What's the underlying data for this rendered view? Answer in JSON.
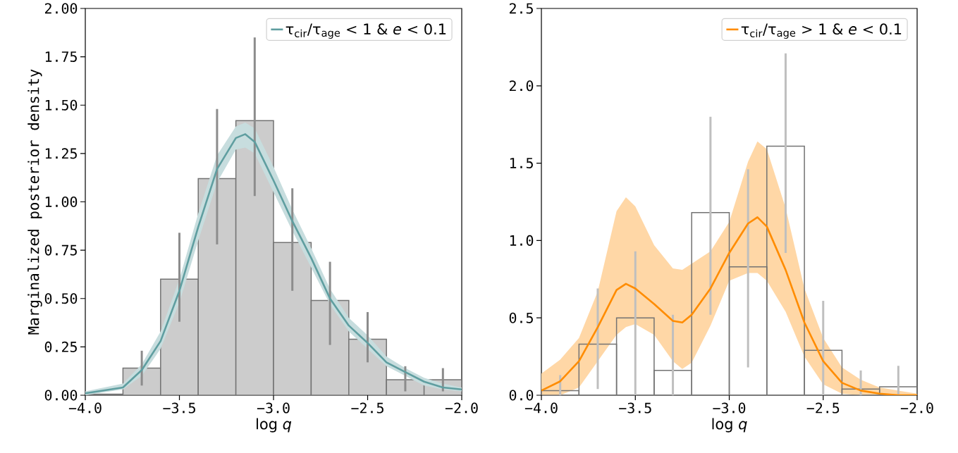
{
  "chart_data": [
    {
      "type": "histogram",
      "ylabel": "Marginalized posterior density",
      "xlabel": "log *q*",
      "bins": [
        -4.0,
        -3.8,
        -3.6,
        -3.4,
        -3.2,
        -3.0,
        -2.8,
        -2.6,
        -2.4,
        -2.2,
        -2.0
      ],
      "values": [
        0.005,
        0.14,
        0.6,
        1.12,
        1.42,
        0.79,
        0.49,
        0.29,
        0.08,
        0.08
      ],
      "errors": [
        null,
        [
          0.05,
          0.23
        ],
        [
          0.38,
          0.84
        ],
        [
          0.78,
          1.48
        ],
        [
          1.03,
          1.85
        ],
        [
          0.54,
          1.07
        ],
        [
          0.26,
          0.69
        ],
        [
          0.17,
          0.43
        ],
        [
          0.02,
          0.15
        ],
        [
          0.02,
          0.14
        ]
      ],
      "color": "#cccccc",
      "legend": "top right",
      "xlim": [
        -4.0,
        -2.0
      ],
      "ylim": [
        0,
        2.0
      ],
      "xticks": [
        {
          "value": -4.0,
          "label": "−4.0"
        },
        {
          "value": -3.5,
          "label": "−3.5"
        },
        {
          "value": -3.0,
          "label": "−3.0"
        },
        {
          "value": -2.5,
          "label": "−2.5"
        },
        {
          "value": -2.0,
          "label": "−2.0"
        }
      ],
      "yticks": [
        {
          "value": 0,
          "label": "0.00"
        },
        {
          "value": 0.25,
          "label": "0.25"
        },
        {
          "value": 0.5,
          "label": "0.50"
        },
        {
          "value": 0.75,
          "label": "0.75"
        },
        {
          "value": 1.0,
          "label": "1.00"
        },
        {
          "value": 1.25,
          "label": "1.25"
        },
        {
          "value": 1.5,
          "label": "1.50"
        },
        {
          "value": 1.75,
          "label": "1.75"
        },
        {
          "value": 2.0,
          "label": "2.00"
        }
      ],
      "series": [
        {
          "type": "line",
          "name": "τ$_{cir}$/τ$_{age}$ < 1 & *e* < 0.1",
          "color": "#5f9ea0",
          "x": [
            -4.0,
            -3.8,
            -3.7,
            -3.6,
            -3.5,
            -3.4,
            -3.3,
            -3.2,
            -3.15,
            -3.1,
            -3.0,
            -2.9,
            -2.8,
            -2.7,
            -2.6,
            -2.5,
            -2.4,
            -2.3,
            -2.2,
            -2.1,
            -2.0
          ],
          "values": [
            0.01,
            0.04,
            0.13,
            0.28,
            0.54,
            0.87,
            1.17,
            1.33,
            1.35,
            1.31,
            1.11,
            0.9,
            0.71,
            0.5,
            0.36,
            0.27,
            0.17,
            0.12,
            0.07,
            0.04,
            0.03
          ],
          "lower": [
            0.0,
            0.03,
            0.1,
            0.24,
            0.48,
            0.8,
            1.1,
            1.27,
            1.28,
            1.25,
            1.05,
            0.85,
            0.66,
            0.47,
            0.33,
            0.24,
            0.15,
            0.1,
            0.05,
            0.03,
            0.02
          ],
          "upper": [
            0.02,
            0.06,
            0.16,
            0.33,
            0.6,
            0.94,
            1.24,
            1.39,
            1.41,
            1.38,
            1.18,
            0.96,
            0.76,
            0.55,
            0.4,
            0.31,
            0.2,
            0.14,
            0.09,
            0.06,
            0.04
          ]
        }
      ]
    },
    {
      "type": "histogram",
      "xlabel": "log *q*",
      "bins": [
        -4.0,
        -3.8,
        -3.6,
        -3.4,
        -3.2,
        -3.0,
        -2.8,
        -2.6,
        -2.4,
        -2.2,
        -2.0
      ],
      "values": [
        0.03,
        0.33,
        0.5,
        0.16,
        1.18,
        0.83,
        1.61,
        0.29,
        0.04,
        0.055
      ],
      "errors": [
        [
          0.0,
          0.13
        ],
        [
          0.04,
          0.69
        ],
        [
          0.0,
          0.93
        ],
        [
          0.0,
          0.52
        ],
        [
          0.52,
          1.8
        ],
        [
          0.18,
          1.46
        ],
        [
          0.92,
          2.21
        ],
        [
          0.0,
          0.61
        ],
        [
          0.0,
          0.16
        ],
        [
          0.0,
          0.19
        ]
      ],
      "color": "#737373",
      "legend": "top right",
      "xlim": [
        -4.0,
        -2.0
      ],
      "ylim": [
        0,
        2.5
      ],
      "xticks": [
        {
          "value": -4.0,
          "label": "−4.0"
        },
        {
          "value": -3.5,
          "label": "−3.5"
        },
        {
          "value": -3.0,
          "label": "−3.0"
        },
        {
          "value": -2.5,
          "label": "−2.5"
        },
        {
          "value": -2.0,
          "label": "−2.0"
        }
      ],
      "yticks": [
        {
          "value": 0.0,
          "label": "0.0"
        },
        {
          "value": 0.5,
          "label": "0.5"
        },
        {
          "value": 1.0,
          "label": "1.0"
        },
        {
          "value": 1.5,
          "label": "1.5"
        },
        {
          "value": 2.0,
          "label": "2.0"
        },
        {
          "value": 2.5,
          "label": "2.5"
        }
      ],
      "series": [
        {
          "type": "line",
          "name": "τ$_{cir}$/τ$_{age}$ > 1 & *e* < 0.1",
          "color": "#ff8c00",
          "x": [
            -4.0,
            -3.9,
            -3.8,
            -3.7,
            -3.6,
            -3.55,
            -3.5,
            -3.4,
            -3.3,
            -3.25,
            -3.2,
            -3.1,
            -3.0,
            -2.9,
            -2.85,
            -2.8,
            -2.7,
            -2.6,
            -2.5,
            -2.4,
            -2.3,
            -2.2,
            -2.1,
            -2.0
          ],
          "values": [
            0.03,
            0.09,
            0.22,
            0.44,
            0.68,
            0.72,
            0.69,
            0.59,
            0.48,
            0.47,
            0.52,
            0.69,
            0.92,
            1.11,
            1.15,
            1.09,
            0.81,
            0.47,
            0.22,
            0.08,
            0.03,
            0.01,
            0.0,
            0.0
          ],
          "lower": [
            0.0,
            0.0,
            0.05,
            0.22,
            0.39,
            0.44,
            0.46,
            0.39,
            0.22,
            0.17,
            0.21,
            0.45,
            0.74,
            0.79,
            0.79,
            0.74,
            0.54,
            0.25,
            0.07,
            0.01,
            0.0,
            0.005,
            0.003,
            0.0
          ],
          "upper": [
            0.14,
            0.23,
            0.37,
            0.67,
            1.19,
            1.28,
            1.22,
            0.97,
            0.82,
            0.81,
            0.85,
            0.93,
            1.12,
            1.51,
            1.64,
            1.59,
            1.21,
            0.69,
            0.37,
            0.18,
            0.1,
            0.05,
            0.03,
            0.01
          ]
        }
      ]
    }
  ]
}
